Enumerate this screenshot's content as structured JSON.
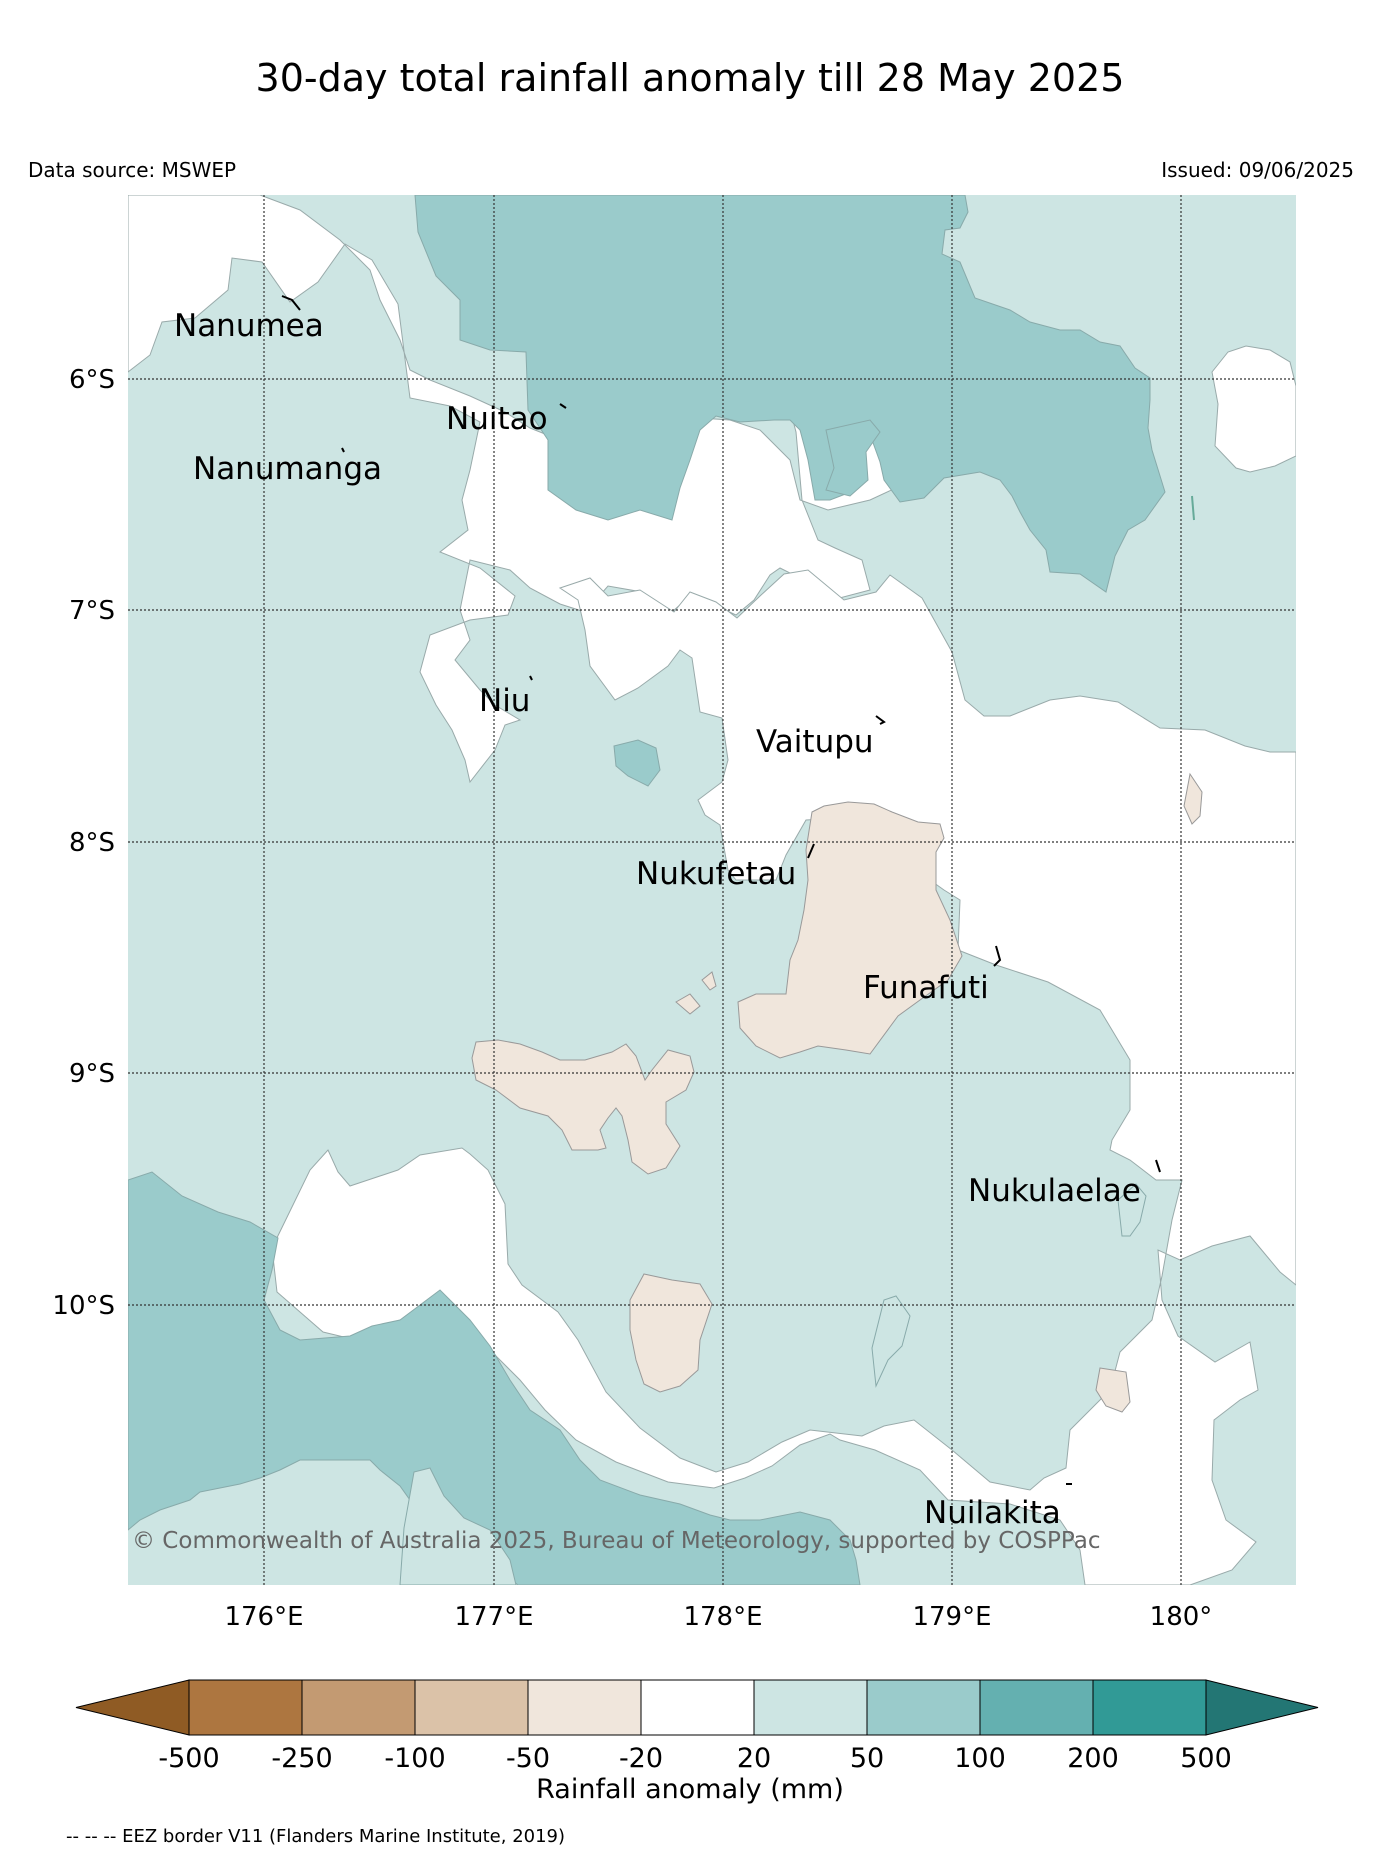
{
  "title": "30-day total rainfall anomaly till 28 May 2025",
  "data_source": "Data source: MSWEP",
  "issued": "Issued: 09/06/2025",
  "copyright": "© Commonwealth of Australia 2025, Bureau of Meteorology, supported by COSPPac",
  "eez_note": "-- -- -- EEZ border V11 (Flanders Marine Institute, 2019)",
  "map": {
    "lon_ticks": [
      "176°E",
      "177°E",
      "178°E",
      "179°E",
      "180°"
    ],
    "lat_ticks": [
      "6°S",
      "7°S",
      "8°S",
      "9°S",
      "10°S"
    ],
    "places": [
      "Nanumea",
      "Nuitao",
      "Nanumanga",
      "Niu",
      "Vaitupu",
      "Nukufetau",
      "Funafuti",
      "Nukulaelae",
      "Nuilakita"
    ]
  },
  "colorbar": {
    "label": "Rainfall anomaly (mm)",
    "ticks": [
      "-500",
      "-250",
      "-100",
      "-50",
      "-20",
      "20",
      "50",
      "100",
      "200",
      "500"
    ],
    "colors": [
      "#8f5b24",
      "#ad7640",
      "#c39a72",
      "#dbc2a8",
      "#f0e6dc",
      "#ffffff",
      "#cde5e3",
      "#9acbcb",
      "#64b0b0",
      "#319a96",
      "#237674"
    ]
  }
}
